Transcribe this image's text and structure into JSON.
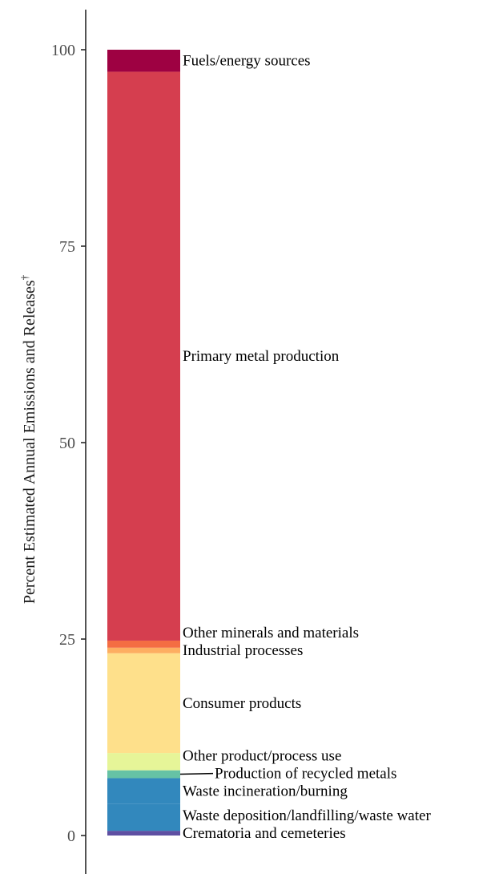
{
  "chart_data": {
    "type": "bar",
    "stacked": true,
    "ylabel": "Percent Estimated Annual Emissions and Releases",
    "ylabel_mark": "†",
    "ylim": [
      0,
      100
    ],
    "yticks": [
      "0",
      "25",
      "50",
      "75",
      "100"
    ],
    "grid": false,
    "segments": [
      {
        "name": "Crematoria and cemeteries",
        "start": 0,
        "end": 0.6,
        "color": "#5e4fa2"
      },
      {
        "name": "Waste deposition/landfilling/waste water",
        "start": 0.6,
        "end": 4.0,
        "color": "#3288bd"
      },
      {
        "name": "Waste incineration/burning",
        "start": 4.0,
        "end": 7.3,
        "color": "#3288bd"
      },
      {
        "name": "Production of recycled metals",
        "start": 7.3,
        "end": 8.3,
        "color": "#66c2a5"
      },
      {
        "name": "Other product/process use",
        "start": 8.3,
        "end": 10.5,
        "color": "#e6f598"
      },
      {
        "name": "Consumer products",
        "start": 10.5,
        "end": 23.2,
        "color": "#fee08b"
      },
      {
        "name": "Industrial processes",
        "start": 23.2,
        "end": 23.9,
        "color": "#fdae61"
      },
      {
        "name": "Other minerals and materials",
        "start": 23.9,
        "end": 24.8,
        "color": "#f46d43"
      },
      {
        "name": "Primary metal production",
        "start": 24.8,
        "end": 97.2,
        "color": "#d53e4f"
      },
      {
        "name": "Fuels/energy sources",
        "start": 97.2,
        "end": 100,
        "color": "#9e0142"
      }
    ]
  }
}
